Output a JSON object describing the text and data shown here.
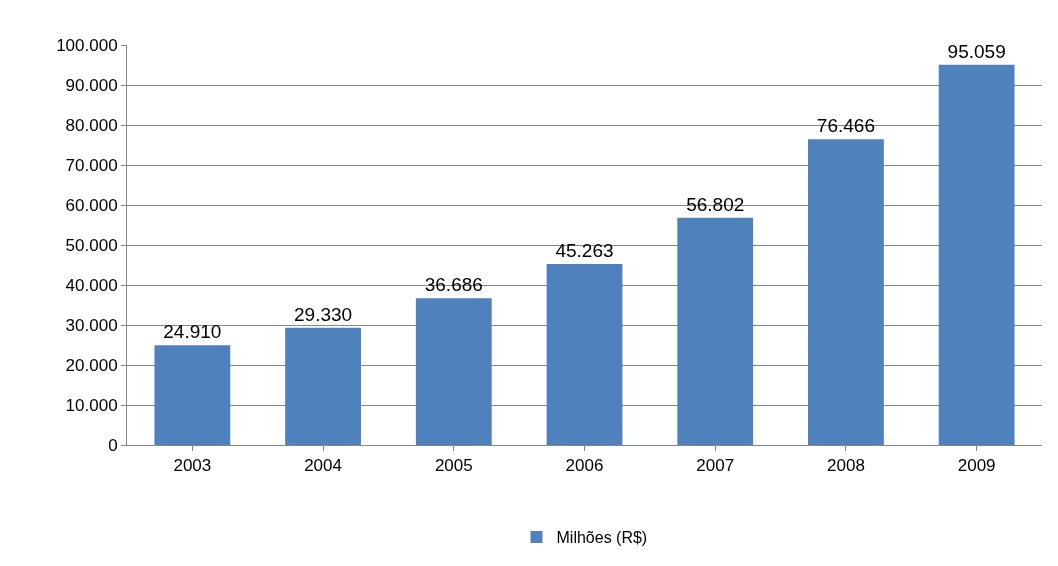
{
  "chart_data": {
    "type": "bar",
    "categories": [
      "2003",
      "2004",
      "2005",
      "2006",
      "2007",
      "2008",
      "2009"
    ],
    "series": [
      {
        "name": "Milhões (R$)",
        "color": "#4f81bd",
        "values": [
          24910,
          29330,
          36686,
          45263,
          56802,
          76466,
          95059
        ],
        "value_labels": [
          "24.910",
          "29.330",
          "36.686",
          "45.263",
          "56.802",
          "76.466",
          "95.059"
        ]
      }
    ],
    "ylim": [
      0,
      100000
    ],
    "yticks": [
      {
        "value": 0,
        "label": "0"
      },
      {
        "value": 10000,
        "label": "10.000"
      },
      {
        "value": 20000,
        "label": "20.000"
      },
      {
        "value": 30000,
        "label": "30.000"
      },
      {
        "value": 40000,
        "label": "40.000"
      },
      {
        "value": 50000,
        "label": "50.000"
      },
      {
        "value": 60000,
        "label": "60.000"
      },
      {
        "value": 70000,
        "label": "70.000"
      },
      {
        "value": 80000,
        "label": "80.000"
      },
      {
        "value": 90000,
        "label": "90.000"
      },
      {
        "value": 100000,
        "label": "100.000"
      }
    ],
    "grid": "y",
    "legend": "bottom"
  }
}
